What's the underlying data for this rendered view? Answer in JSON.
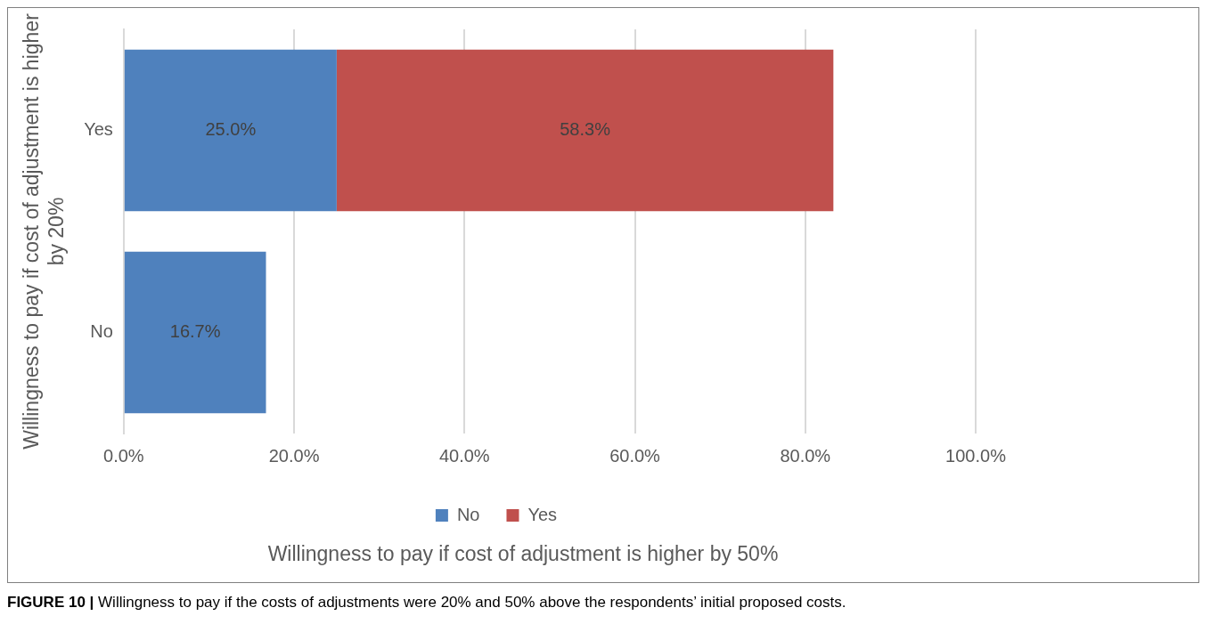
{
  "chart_data": {
    "type": "bar",
    "orientation": "horizontal",
    "stacked": true,
    "xlabel": "Willingness to pay if cost of adjustment is higher by 50%",
    "ylabel": "Willingness to pay if cost of adjustment is higher by 20%",
    "categories": [
      "Yes",
      "No"
    ],
    "series": [
      {
        "name": "No",
        "color": "#4f81bd",
        "values": [
          25.0,
          16.7
        ],
        "value_labels": [
          "25.0%",
          "16.7%"
        ]
      },
      {
        "name": "Yes",
        "color": "#c0504d",
        "values": [
          58.3,
          null
        ],
        "value_labels": [
          "58.3%",
          null
        ]
      }
    ],
    "xlim": [
      0,
      100
    ],
    "xticks": [
      {
        "value": 0,
        "label": "0.0%"
      },
      {
        "value": 20,
        "label": "20.0%"
      },
      {
        "value": 40,
        "label": "40.0%"
      },
      {
        "value": 60,
        "label": "60.0%"
      },
      {
        "value": 80,
        "label": "80.0%"
      },
      {
        "value": 100,
        "label": "100.0%"
      }
    ],
    "grid": "x",
    "legend": "bottom",
    "annotations": [
      "FIGURE 10 | Willingness to pay if the costs of adjustments were 20% and 50% above the respondents’ initial proposed costs."
    ]
  }
}
